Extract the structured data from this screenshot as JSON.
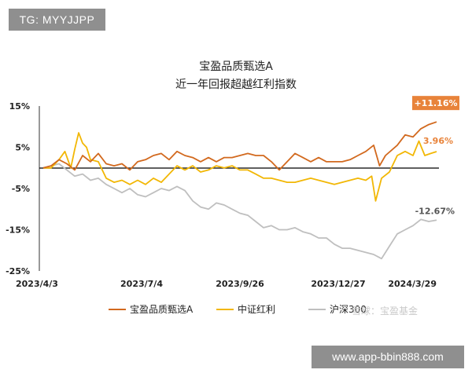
{
  "watermark_top": "TG: MYYJJPP",
  "watermark_bottom": "www.app-bbin888.com",
  "snowball_watermark": "雪球：宝盈基金",
  "colors": {
    "fund": "#d2691e",
    "dividend": "#f2b705",
    "hs300": "#bfbfbf",
    "badge": "#e8833a"
  },
  "chart_data": {
    "type": "line",
    "title": "宝盈品质甄选A",
    "subtitle": "近一年回报超越红利指数",
    "ylim": [
      -25,
      15
    ],
    "yticks": [
      15,
      5,
      -5,
      -15,
      -25
    ],
    "ytick_labels": [
      "15%",
      "5%",
      "-5%",
      "-15%",
      "-25%"
    ],
    "xtick_labels": [
      "2023/4/3",
      "2023/7/4",
      "2023/9/26",
      "2023/12/27",
      "2024/3/29"
    ],
    "x_positions": [
      0,
      0.25,
      0.5,
      0.75,
      1
    ],
    "grid": false,
    "legend": "bottom",
    "series": [
      {
        "name": "宝盈品质甄选A",
        "color_key": "fund",
        "end_label": "+11.16%",
        "points": [
          [
            0,
            0
          ],
          [
            0.02,
            0.5
          ],
          [
            0.04,
            2
          ],
          [
            0.06,
            1
          ],
          [
            0.08,
            -0.5
          ],
          [
            0.1,
            3
          ],
          [
            0.12,
            1.5
          ],
          [
            0.14,
            3.5
          ],
          [
            0.16,
            1
          ],
          [
            0.18,
            0.5
          ],
          [
            0.2,
            1
          ],
          [
            0.22,
            -0.5
          ],
          [
            0.24,
            1.5
          ],
          [
            0.26,
            2
          ],
          [
            0.28,
            3
          ],
          [
            0.3,
            3.5
          ],
          [
            0.32,
            2
          ],
          [
            0.34,
            4
          ],
          [
            0.36,
            3
          ],
          [
            0.38,
            2.5
          ],
          [
            0.4,
            1.5
          ],
          [
            0.42,
            2.5
          ],
          [
            0.44,
            1.5
          ],
          [
            0.46,
            2.5
          ],
          [
            0.48,
            2.5
          ],
          [
            0.5,
            3
          ],
          [
            0.52,
            3.5
          ],
          [
            0.54,
            3
          ],
          [
            0.56,
            3
          ],
          [
            0.58,
            1.5
          ],
          [
            0.6,
            -0.5
          ],
          [
            0.62,
            1.5
          ],
          [
            0.64,
            3.5
          ],
          [
            0.66,
            2.5
          ],
          [
            0.68,
            1.5
          ],
          [
            0.7,
            2.5
          ],
          [
            0.72,
            1.5
          ],
          [
            0.74,
            1.5
          ],
          [
            0.76,
            1.5
          ],
          [
            0.78,
            2
          ],
          [
            0.8,
            3
          ],
          [
            0.82,
            4
          ],
          [
            0.84,
            5.5
          ],
          [
            0.855,
            0.5
          ],
          [
            0.87,
            3
          ],
          [
            0.9,
            5.5
          ],
          [
            0.92,
            8
          ],
          [
            0.94,
            7.5
          ],
          [
            0.96,
            9.5
          ],
          [
            0.98,
            10.5
          ],
          [
            1,
            11.16
          ]
        ]
      },
      {
        "name": "中证红利",
        "color_key": "dividend",
        "end_label": "3.96%",
        "points": [
          [
            0,
            0
          ],
          [
            0.02,
            0
          ],
          [
            0.04,
            2
          ],
          [
            0.055,
            4
          ],
          [
            0.07,
            0
          ],
          [
            0.08,
            4.5
          ],
          [
            0.09,
            8.5
          ],
          [
            0.1,
            6
          ],
          [
            0.11,
            5
          ],
          [
            0.12,
            2
          ],
          [
            0.14,
            1.5
          ],
          [
            0.16,
            -2.5
          ],
          [
            0.18,
            -3.5
          ],
          [
            0.2,
            -3
          ],
          [
            0.22,
            -4
          ],
          [
            0.24,
            -3
          ],
          [
            0.26,
            -4
          ],
          [
            0.28,
            -2.5
          ],
          [
            0.3,
            -3.5
          ],
          [
            0.32,
            -1.5
          ],
          [
            0.34,
            0.5
          ],
          [
            0.36,
            -0.5
          ],
          [
            0.38,
            0.5
          ],
          [
            0.4,
            -1
          ],
          [
            0.42,
            -0.5
          ],
          [
            0.44,
            0.5
          ],
          [
            0.46,
            0
          ],
          [
            0.48,
            0.5
          ],
          [
            0.5,
            -0.5
          ],
          [
            0.52,
            -0.5
          ],
          [
            0.54,
            -1.5
          ],
          [
            0.56,
            -2.5
          ],
          [
            0.58,
            -2.5
          ],
          [
            0.6,
            -3
          ],
          [
            0.62,
            -3.5
          ],
          [
            0.64,
            -3.5
          ],
          [
            0.66,
            -3
          ],
          [
            0.68,
            -2.5
          ],
          [
            0.7,
            -3
          ],
          [
            0.72,
            -3.5
          ],
          [
            0.74,
            -4
          ],
          [
            0.76,
            -3.5
          ],
          [
            0.78,
            -3
          ],
          [
            0.8,
            -2.5
          ],
          [
            0.82,
            -3
          ],
          [
            0.835,
            -2
          ],
          [
            0.845,
            -8
          ],
          [
            0.86,
            -2.5
          ],
          [
            0.88,
            -1
          ],
          [
            0.9,
            3
          ],
          [
            0.92,
            4
          ],
          [
            0.94,
            3
          ],
          [
            0.955,
            6.5
          ],
          [
            0.97,
            3
          ],
          [
            0.985,
            3.5
          ],
          [
            1,
            3.96
          ]
        ]
      },
      {
        "name": "沪深300",
        "color_key": "hs300",
        "end_label": "-12.67%",
        "points": [
          [
            0,
            0
          ],
          [
            0.02,
            0.5
          ],
          [
            0.04,
            1
          ],
          [
            0.06,
            -0.5
          ],
          [
            0.08,
            -2
          ],
          [
            0.1,
            -1.5
          ],
          [
            0.12,
            -3
          ],
          [
            0.14,
            -2.5
          ],
          [
            0.16,
            -4
          ],
          [
            0.18,
            -5
          ],
          [
            0.2,
            -6
          ],
          [
            0.22,
            -5
          ],
          [
            0.24,
            -6.5
          ],
          [
            0.26,
            -7
          ],
          [
            0.28,
            -6
          ],
          [
            0.3,
            -5
          ],
          [
            0.32,
            -5.5
          ],
          [
            0.34,
            -4.5
          ],
          [
            0.36,
            -5.5
          ],
          [
            0.38,
            -8
          ],
          [
            0.4,
            -9.5
          ],
          [
            0.42,
            -10
          ],
          [
            0.44,
            -8.5
          ],
          [
            0.46,
            -9
          ],
          [
            0.48,
            -10
          ],
          [
            0.5,
            -11
          ],
          [
            0.52,
            -11.5
          ],
          [
            0.54,
            -13
          ],
          [
            0.56,
            -14.5
          ],
          [
            0.58,
            -14
          ],
          [
            0.6,
            -15
          ],
          [
            0.62,
            -15
          ],
          [
            0.64,
            -14.5
          ],
          [
            0.66,
            -15.5
          ],
          [
            0.68,
            -16
          ],
          [
            0.7,
            -17
          ],
          [
            0.72,
            -17
          ],
          [
            0.74,
            -18.5
          ],
          [
            0.76,
            -19.5
          ],
          [
            0.78,
            -19.5
          ],
          [
            0.8,
            -20
          ],
          [
            0.82,
            -20.5
          ],
          [
            0.84,
            -21
          ],
          [
            0.86,
            -22
          ],
          [
            0.88,
            -19
          ],
          [
            0.9,
            -16
          ],
          [
            0.92,
            -15
          ],
          [
            0.94,
            -14
          ],
          [
            0.96,
            -12.5
          ],
          [
            0.98,
            -13
          ],
          [
            1,
            -12.67
          ]
        ]
      }
    ]
  }
}
